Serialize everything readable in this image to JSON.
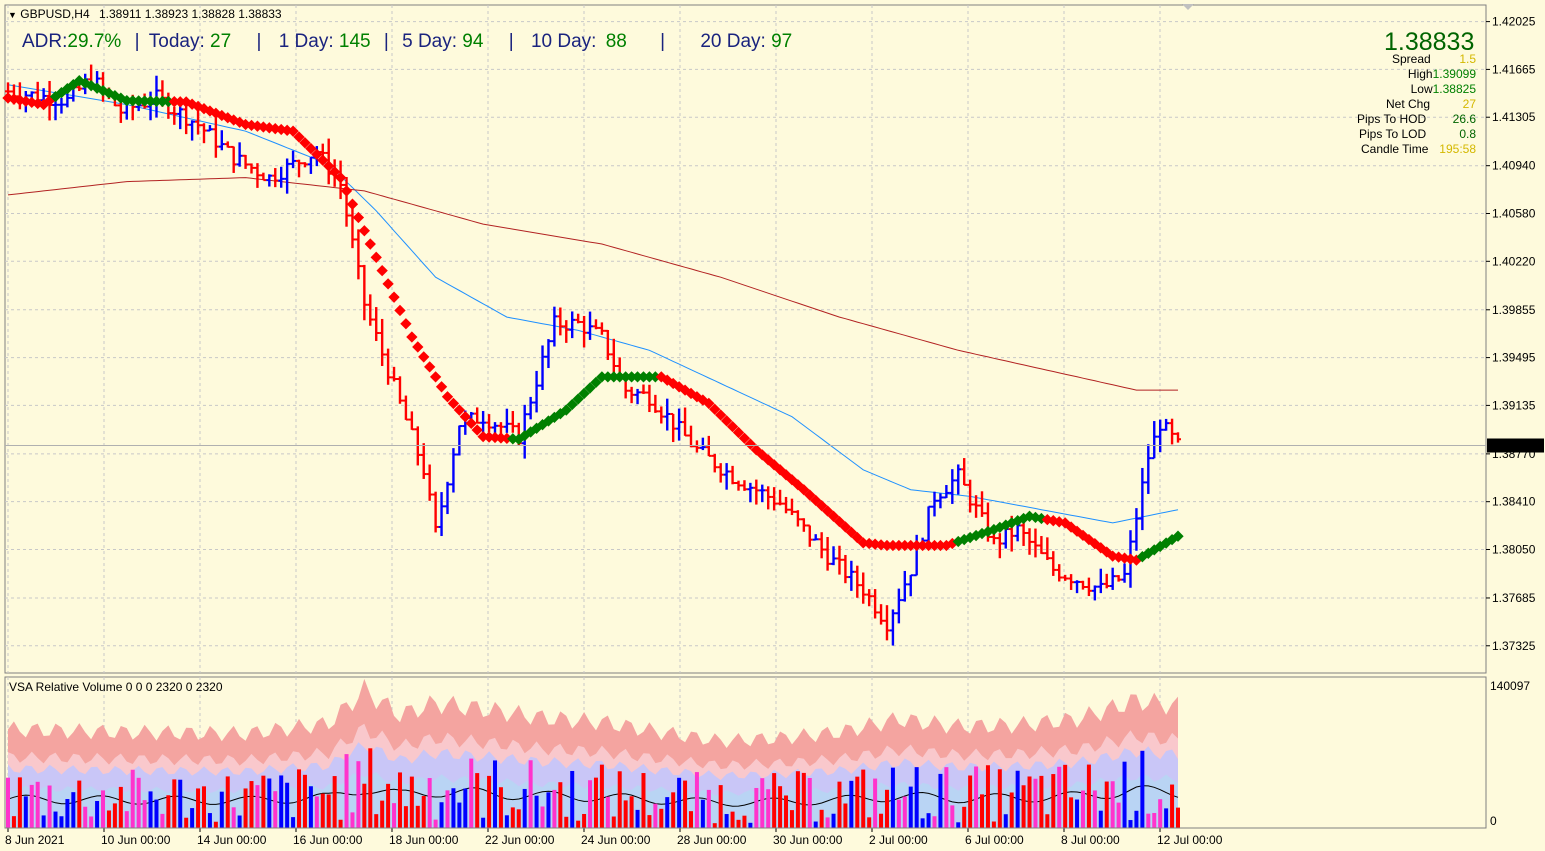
{
  "chart_header": {
    "symbol": "GBPUSD,H4",
    "ohlc": "1.38911 1.38923 1.38828 1.38833"
  },
  "adr_bar": {
    "adr_label": "ADR:",
    "adr_value": "29.7%",
    "sep": "|",
    "today_label": "Today:",
    "today_value": "27",
    "day1_label": "1 Day:",
    "day1_value": "145",
    "day5_label": "5 Day:",
    "day5_value": "94",
    "day10_label": "10 Day:",
    "day10_value": "88",
    "day20_label": "20 Day:",
    "day20_value": "97"
  },
  "info_panel": {
    "price": "1.38833",
    "spread_label": "Spread",
    "spread_value": "1.5",
    "high_label": "High",
    "high_value": "1.39099",
    "low_label": "Low",
    "low_value": "1.38825",
    "netchg_label": "Net Chg",
    "netchg_value": "27",
    "hod_label": "Pips To HOD",
    "hod_value": "26.6",
    "lod_label": "Pips To LOD",
    "lod_value": "0.8",
    "candle_label": "Candle Time",
    "candle_value": "195:58"
  },
  "colors": {
    "up": "#0000ff",
    "down": "#ff0000",
    "green_dot": "#008000",
    "red_dot": "#ff0000",
    "ma_fast": "#1e90ff",
    "ma_slow": "#b22222",
    "price_label_bg": "#000000"
  },
  "chart_data": {
    "type": "bar",
    "price_axis": {
      "ticks": [
        "1.42025",
        "1.41665",
        "1.41305",
        "1.40940",
        "1.40580",
        "1.40220",
        "1.39855",
        "1.39495",
        "1.39135",
        "1.38770",
        "1.38410",
        "1.38050",
        "1.37685",
        "1.37325"
      ],
      "ylim": [
        1.3712,
        1.4215
      ],
      "current": "1.38833"
    },
    "time_axis": {
      "labels": [
        "8 Jun 2021",
        "10 Jun 00:00",
        "14 Jun 00:00",
        "16 Jun 00:00",
        "18 Jun 00:00",
        "22 Jun 00:00",
        "24 Jun 00:00",
        "28 Jun 00:00",
        "30 Jun 00:00",
        "2 Jul 00:00",
        "6 Jul 00:00",
        "8 Jul 00:00",
        "12 Jul 00:00"
      ]
    },
    "bars_count": 198,
    "price_keypoints": [
      [
        0,
        1.415
      ],
      [
        10,
        1.4143
      ],
      [
        14,
        1.416
      ],
      [
        19,
        1.4135
      ],
      [
        25,
        1.4145
      ],
      [
        32,
        1.4125
      ],
      [
        38,
        1.41
      ],
      [
        44,
        1.4085
      ],
      [
        52,
        1.4105
      ],
      [
        56,
        1.408
      ],
      [
        60,
        1.399
      ],
      [
        66,
        1.3915
      ],
      [
        70,
        1.3865
      ],
      [
        72,
        1.3818
      ],
      [
        76,
        1.39
      ],
      [
        80,
        1.3905
      ],
      [
        86,
        1.389
      ],
      [
        92,
        1.3975
      ],
      [
        96,
        1.3975
      ],
      [
        100,
        1.3965
      ],
      [
        104,
        1.3925
      ],
      [
        108,
        1.392
      ],
      [
        112,
        1.39
      ],
      [
        116,
        1.388
      ],
      [
        122,
        1.386
      ],
      [
        130,
        1.384
      ],
      [
        138,
        1.38
      ],
      [
        144,
        1.3775
      ],
      [
        148,
        1.375
      ],
      [
        152,
        1.379
      ],
      [
        156,
        1.3845
      ],
      [
        160,
        1.386
      ],
      [
        166,
        1.381
      ],
      [
        170,
        1.382
      ],
      [
        176,
        1.379
      ],
      [
        184,
        1.3775
      ],
      [
        188,
        1.3785
      ],
      [
        192,
        1.3875
      ],
      [
        194,
        1.39
      ],
      [
        197,
        1.3883
      ]
    ],
    "trend_dots_keypoints": [
      [
        0,
        1.4145
      ],
      [
        6,
        1.414
      ],
      [
        12,
        1.4158
      ],
      [
        20,
        1.4143
      ],
      [
        30,
        1.4142
      ],
      [
        40,
        1.4125
      ],
      [
        48,
        1.412
      ],
      [
        56,
        1.4085
      ],
      [
        62,
        1.4025
      ],
      [
        68,
        1.3965
      ],
      [
        74,
        1.392
      ],
      [
        80,
        1.389
      ],
      [
        86,
        1.3888
      ],
      [
        94,
        1.391
      ],
      [
        100,
        1.3935
      ],
      [
        110,
        1.3935
      ],
      [
        118,
        1.3915
      ],
      [
        126,
        1.388
      ],
      [
        134,
        1.385
      ],
      [
        144,
        1.381
      ],
      [
        148,
        1.3808
      ],
      [
        158,
        1.3808
      ],
      [
        166,
        1.382
      ],
      [
        172,
        1.383
      ],
      [
        178,
        1.3825
      ],
      [
        186,
        1.38
      ],
      [
        190,
        1.3797
      ],
      [
        197,
        1.3815
      ]
    ],
    "trend_switches": [
      [
        0,
        "down"
      ],
      [
        8,
        "up"
      ],
      [
        20,
        "up"
      ],
      [
        28,
        "down"
      ],
      [
        85,
        "up"
      ],
      [
        100,
        "up"
      ],
      [
        110,
        "down"
      ],
      [
        150,
        "down"
      ],
      [
        160,
        "up"
      ],
      [
        175,
        "down"
      ],
      [
        191,
        "up"
      ]
    ],
    "ma_fast_keypoints": [
      [
        0,
        1.4155
      ],
      [
        20,
        1.414
      ],
      [
        40,
        1.412
      ],
      [
        54,
        1.4095
      ],
      [
        62,
        1.406
      ],
      [
        72,
        1.401
      ],
      [
        84,
        1.398
      ],
      [
        96,
        1.397
      ],
      [
        108,
        1.3955
      ],
      [
        120,
        1.393
      ],
      [
        132,
        1.3905
      ],
      [
        144,
        1.3865
      ],
      [
        152,
        1.385
      ],
      [
        162,
        1.3845
      ],
      [
        174,
        1.3835
      ],
      [
        186,
        1.3825
      ],
      [
        197,
        1.3835
      ]
    ],
    "ma_slow_keypoints": [
      [
        0,
        1.4072
      ],
      [
        20,
        1.4082
      ],
      [
        40,
        1.4085
      ],
      [
        60,
        1.4075
      ],
      [
        80,
        1.405
      ],
      [
        100,
        1.4035
      ],
      [
        120,
        1.401
      ],
      [
        140,
        1.398
      ],
      [
        160,
        1.3955
      ],
      [
        180,
        1.3935
      ],
      [
        190,
        1.3925
      ],
      [
        197,
        1.3925
      ]
    ],
    "volume_panel": {
      "title": "VSA Relative Volume 0 0 0 2320 0 2320",
      "ymax_label": "140097",
      "ymin_label": "0",
      "bands_keypoints": [
        [
          0,
          0.68
        ],
        [
          20,
          0.66
        ],
        [
          40,
          0.65
        ],
        [
          54,
          0.72
        ],
        [
          60,
          0.95
        ],
        [
          66,
          0.78
        ],
        [
          72,
          0.86
        ],
        [
          80,
          0.82
        ],
        [
          90,
          0.76
        ],
        [
          100,
          0.73
        ],
        [
          110,
          0.66
        ],
        [
          120,
          0.6
        ],
        [
          130,
          0.62
        ],
        [
          140,
          0.66
        ],
        [
          150,
          0.75
        ],
        [
          160,
          0.7
        ],
        [
          170,
          0.71
        ],
        [
          180,
          0.75
        ],
        [
          190,
          0.88
        ],
        [
          197,
          0.84
        ]
      ]
    }
  }
}
